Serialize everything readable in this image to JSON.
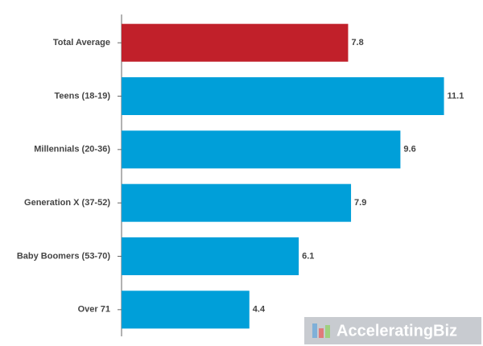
{
  "chart_data": {
    "type": "bar",
    "orientation": "horizontal",
    "categories": [
      "Total Average",
      "Teens (18-19)",
      "Millennials (20-36)",
      "Generation X (37-52)",
      "Baby Boomers (53-70)",
      "Over 71"
    ],
    "values": [
      7.8,
      11.1,
      9.6,
      7.9,
      6.1,
      4.4
    ],
    "colors": [
      "#c1202a",
      "#009fd9",
      "#009fd9",
      "#009fd9",
      "#009fd9",
      "#009fd9"
    ],
    "xlim": [
      0,
      12
    ],
    "watermark": "AcceleratingBiz"
  }
}
